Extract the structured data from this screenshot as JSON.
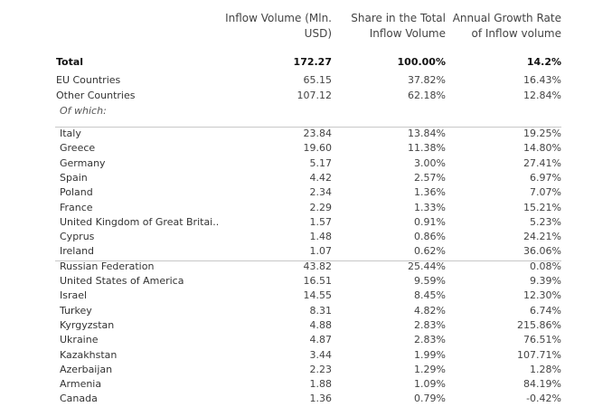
{
  "chart_data": {
    "type": "table",
    "columns": [
      "Inflow Volume (Mln.\nUSD)",
      "Share in the Total\nInflow Volume",
      "Annual Growth Rate\nof Inflow volume"
    ],
    "summary_rows": [
      {
        "name": "Total",
        "volume": "172.27",
        "share": "100.00%",
        "growth": "14.2%",
        "style": "bold"
      },
      {
        "name": "EU Countries",
        "volume": "65.15",
        "share": "37.82%",
        "growth": "16.43%",
        "style": "normal"
      },
      {
        "name": "Other Countries",
        "volume": "107.12",
        "share": "62.18%",
        "growth": "12.84%",
        "style": "normal"
      },
      {
        "name": "Of which:",
        "volume": "",
        "share": "",
        "growth": "",
        "style": "italic"
      }
    ],
    "eu_rows": [
      {
        "name": "Italy",
        "volume": "23.84",
        "share": "13.84%",
        "growth": "19.25%"
      },
      {
        "name": "Greece",
        "volume": "19.60",
        "share": "11.38%",
        "growth": "14.80%"
      },
      {
        "name": "Germany",
        "volume": "5.17",
        "share": "3.00%",
        "growth": "27.41%"
      },
      {
        "name": "Spain",
        "volume": "4.42",
        "share": "2.57%",
        "growth": "6.97%"
      },
      {
        "name": "Poland",
        "volume": "2.34",
        "share": "1.36%",
        "growth": "7.07%"
      },
      {
        "name": "France",
        "volume": "2.29",
        "share": "1.33%",
        "growth": "15.21%"
      },
      {
        "name": "United Kingdom of Great Britai..",
        "volume": "1.57",
        "share": "0.91%",
        "growth": "5.23%"
      },
      {
        "name": "Cyprus",
        "volume": "1.48",
        "share": "0.86%",
        "growth": "24.21%"
      },
      {
        "name": "Ireland",
        "volume": "1.07",
        "share": "0.62%",
        "growth": "36.06%"
      }
    ],
    "other_rows": [
      {
        "name": "Russian Federation",
        "volume": "43.82",
        "share": "25.44%",
        "growth": "0.08%"
      },
      {
        "name": "United States of America",
        "volume": "16.51",
        "share": "9.59%",
        "growth": "9.39%"
      },
      {
        "name": "Israel",
        "volume": "14.55",
        "share": "8.45%",
        "growth": "12.30%"
      },
      {
        "name": "Turkey",
        "volume": "8.31",
        "share": "4.82%",
        "growth": "6.74%"
      },
      {
        "name": "Kyrgyzstan",
        "volume": "4.88",
        "share": "2.83%",
        "growth": "215.86%"
      },
      {
        "name": "Ukraine",
        "volume": "4.87",
        "share": "2.83%",
        "growth": "76.51%"
      },
      {
        "name": "Kazakhstan",
        "volume": "3.44",
        "share": "1.99%",
        "growth": "107.71%"
      },
      {
        "name": "Azerbaijan",
        "volume": "2.23",
        "share": "1.29%",
        "growth": "1.28%"
      },
      {
        "name": "Armenia",
        "volume": "1.88",
        "share": "1.09%",
        "growth": "84.19%"
      },
      {
        "name": "Canada",
        "volume": "1.36",
        "share": "0.79%",
        "growth": "-0.42%"
      }
    ]
  }
}
